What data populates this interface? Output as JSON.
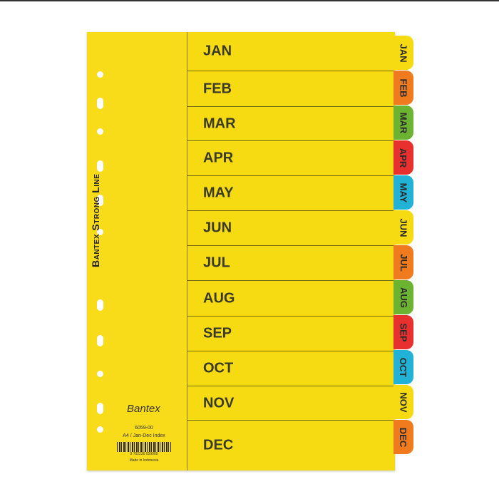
{
  "product": {
    "brand_series": "Bantex Strong Line",
    "brand": "Bantex",
    "code": "6059-00",
    "description": "A4 / Jan-Dec Index",
    "barcode_number": "9 702236 059009",
    "origin": "Made in Indonesia"
  },
  "months": [
    "JAN",
    "FEB",
    "MAR",
    "APR",
    "MAY",
    "JUN",
    "JUL",
    "AUG",
    "SEP",
    "OCT",
    "NOV",
    "DEC"
  ],
  "tab_colors": [
    "#f6da12",
    "#f07a1e",
    "#6db332",
    "#e8302e",
    "#22b2d6",
    "#f6da12",
    "#f07a1e",
    "#6db332",
    "#e8302e",
    "#22b2d6",
    "#f6da12",
    "#f07a1e"
  ],
  "sheet_color": "#f6da12"
}
